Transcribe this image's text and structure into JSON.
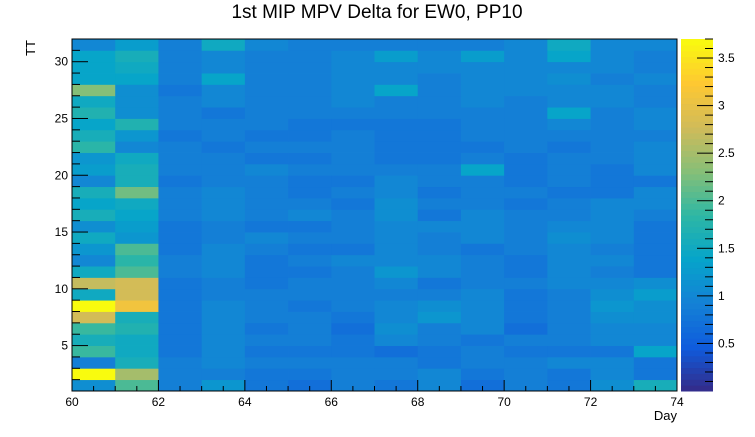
{
  "chart_data": {
    "type": "heatmap",
    "title": "1st MIP MPV Delta for EW0, PP10",
    "xlabel": "Day",
    "ylabel": "TT",
    "xlim": [
      60,
      74
    ],
    "ylim": [
      1,
      32
    ],
    "x_ticks": [
      "60",
      "62",
      "64",
      "66",
      "68",
      "70",
      "72",
      "74"
    ],
    "y_ticks": [
      "5",
      "10",
      "15",
      "20",
      "25",
      "30"
    ],
    "colorbar": {
      "zlim": [
        0,
        3.7
      ],
      "ticks": [
        "0.5",
        "1",
        "1.5",
        "2",
        "2.5",
        "3",
        "3.5"
      ],
      "palette": [
        "#352a87",
        "#0f5cdd",
        "#1481d6",
        "#06a4ca",
        "#2eb7a4",
        "#87bf77",
        "#d1bb59",
        "#fec832",
        "#f9fb0e"
      ]
    },
    "x_bins": [
      60,
      61,
      62,
      63,
      64,
      65,
      66,
      67,
      68,
      69,
      70,
      71,
      72,
      73
    ],
    "y_bins": [
      1,
      2,
      3,
      4,
      5,
      6,
      7,
      8,
      9,
      10,
      11,
      12,
      13,
      14,
      15,
      16,
      17,
      18,
      19,
      20,
      21,
      22,
      23,
      24,
      25,
      26,
      27,
      28,
      29,
      30,
      31
    ],
    "values": [
      [
        1.1,
        2.0,
        0.9,
        1.2,
        0.8,
        0.7,
        0.9,
        0.8,
        1.0,
        0.7,
        0.9,
        0.8,
        1.1,
        1.6
      ],
      [
        3.7,
        2.5,
        0.9,
        0.9,
        0.8,
        0.8,
        0.9,
        0.9,
        1.0,
        0.8,
        0.9,
        0.8,
        1.0,
        0.8
      ],
      [
        0.9,
        1.6,
        0.9,
        1.0,
        0.9,
        0.9,
        0.9,
        0.9,
        0.8,
        0.9,
        0.9,
        1.0,
        1.0,
        0.8
      ],
      [
        1.9,
        1.5,
        0.8,
        1.0,
        0.8,
        0.8,
        0.8,
        0.7,
        0.8,
        0.9,
        0.8,
        0.8,
        0.8,
        1.4
      ],
      [
        1.6,
        1.5,
        0.8,
        1.0,
        0.9,
        0.9,
        0.8,
        1.0,
        0.9,
        0.8,
        0.9,
        0.9,
        1.0,
        1.0
      ],
      [
        1.9,
        1.7,
        0.8,
        1.0,
        0.8,
        0.9,
        0.7,
        1.1,
        0.9,
        1.0,
        0.7,
        0.9,
        1.0,
        1.0
      ],
      [
        2.8,
        1.6,
        0.8,
        1.0,
        0.9,
        0.9,
        0.8,
        1.0,
        1.2,
        1.0,
        0.8,
        0.9,
        1.1,
        1.1
      ],
      [
        3.7,
        3.1,
        0.8,
        1.0,
        0.9,
        0.8,
        0.9,
        1.0,
        1.1,
        1.0,
        0.8,
        0.9,
        1.2,
        1.1
      ],
      [
        1.5,
        2.8,
        0.8,
        0.9,
        0.9,
        0.9,
        0.9,
        0.9,
        0.9,
        1.0,
        0.8,
        0.9,
        1.1,
        1.3
      ],
      [
        2.7,
        2.8,
        0.8,
        0.9,
        0.8,
        0.9,
        0.9,
        1.0,
        0.8,
        0.9,
        0.9,
        1.0,
        1.0,
        1.1
      ],
      [
        1.5,
        2.0,
        0.9,
        1.0,
        0.8,
        0.8,
        0.9,
        1.2,
        1.0,
        0.9,
        0.8,
        1.0,
        0.9,
        0.8
      ],
      [
        1.0,
        1.8,
        0.9,
        1.0,
        0.8,
        0.9,
        1.0,
        1.0,
        1.0,
        0.9,
        0.8,
        1.0,
        1.0,
        0.8
      ],
      [
        1.2,
        2.0,
        0.8,
        1.0,
        0.9,
        0.8,
        0.8,
        1.0,
        0.9,
        0.8,
        0.9,
        1.0,
        0.9,
        0.8
      ],
      [
        1.5,
        1.2,
        0.8,
        0.9,
        1.0,
        0.9,
        0.9,
        1.0,
        0.9,
        1.0,
        0.9,
        1.1,
        1.0,
        0.8
      ],
      [
        1.1,
        1.3,
        0.8,
        0.9,
        0.8,
        0.8,
        0.9,
        1.0,
        1.0,
        1.0,
        0.9,
        1.0,
        1.0,
        0.8
      ],
      [
        1.6,
        1.4,
        0.9,
        1.0,
        0.9,
        1.0,
        0.9,
        1.1,
        0.8,
        1.0,
        0.9,
        0.9,
        1.0,
        0.9
      ],
      [
        1.4,
        1.5,
        0.9,
        1.0,
        0.9,
        0.9,
        0.8,
        1.1,
        0.9,
        0.9,
        0.8,
        0.9,
        1.0,
        1.0
      ],
      [
        1.6,
        2.2,
        0.9,
        1.0,
        0.9,
        0.8,
        0.9,
        1.0,
        0.8,
        0.9,
        0.9,
        0.8,
        0.8,
        1.0
      ],
      [
        1.0,
        1.6,
        0.8,
        0.9,
        0.9,
        0.8,
        0.8,
        1.0,
        0.9,
        0.9,
        0.8,
        0.9,
        0.8,
        0.8
      ],
      [
        1.3,
        1.6,
        0.9,
        0.9,
        1.0,
        0.9,
        0.9,
        0.9,
        0.9,
        1.4,
        0.8,
        0.9,
        0.8,
        1.0
      ],
      [
        1.2,
        1.5,
        0.9,
        0.9,
        0.8,
        0.8,
        0.9,
        0.8,
        0.8,
        0.9,
        0.8,
        0.9,
        0.9,
        1.0
      ],
      [
        1.8,
        1.0,
        0.9,
        0.8,
        0.9,
        0.9,
        0.9,
        0.8,
        0.8,
        0.8,
        0.9,
        0.8,
        0.9,
        1.0
      ],
      [
        1.6,
        1.2,
        0.8,
        0.9,
        0.8,
        0.8,
        0.9,
        0.8,
        0.8,
        0.9,
        0.9,
        0.9,
        0.9,
        0.9
      ],
      [
        1.4,
        1.7,
        0.9,
        0.9,
        0.9,
        0.8,
        0.8,
        0.8,
        0.8,
        0.9,
        0.9,
        1.0,
        0.9,
        1.0
      ],
      [
        1.7,
        1.1,
        0.9,
        0.8,
        0.9,
        0.9,
        0.9,
        0.9,
        0.9,
        0.9,
        0.9,
        1.4,
        0.9,
        1.0
      ],
      [
        1.5,
        1.1,
        0.9,
        1.0,
        0.9,
        0.9,
        1.0,
        0.9,
        0.9,
        1.0,
        0.9,
        1.0,
        1.0,
        0.9
      ],
      [
        2.3,
        1.1,
        0.8,
        1.0,
        0.9,
        0.9,
        1.0,
        1.4,
        0.9,
        1.0,
        1.0,
        1.0,
        1.0,
        0.9
      ],
      [
        1.4,
        1.4,
        0.9,
        1.4,
        0.9,
        0.9,
        1.0,
        1.0,
        0.9,
        1.0,
        1.0,
        1.1,
        0.9,
        1.0
      ],
      [
        1.4,
        1.5,
        0.9,
        1.0,
        0.9,
        0.9,
        1.0,
        1.0,
        1.0,
        1.0,
        1.0,
        1.0,
        1.0,
        0.9
      ],
      [
        1.4,
        1.6,
        0.9,
        1.0,
        0.9,
        0.9,
        1.0,
        1.3,
        1.0,
        1.3,
        1.0,
        1.4,
        1.0,
        0.9
      ],
      [
        1.0,
        1.3,
        0.9,
        1.5,
        1.0,
        0.9,
        0.9,
        0.9,
        0.9,
        0.9,
        1.0,
        1.5,
        1.0,
        1.0
      ]
    ]
  }
}
